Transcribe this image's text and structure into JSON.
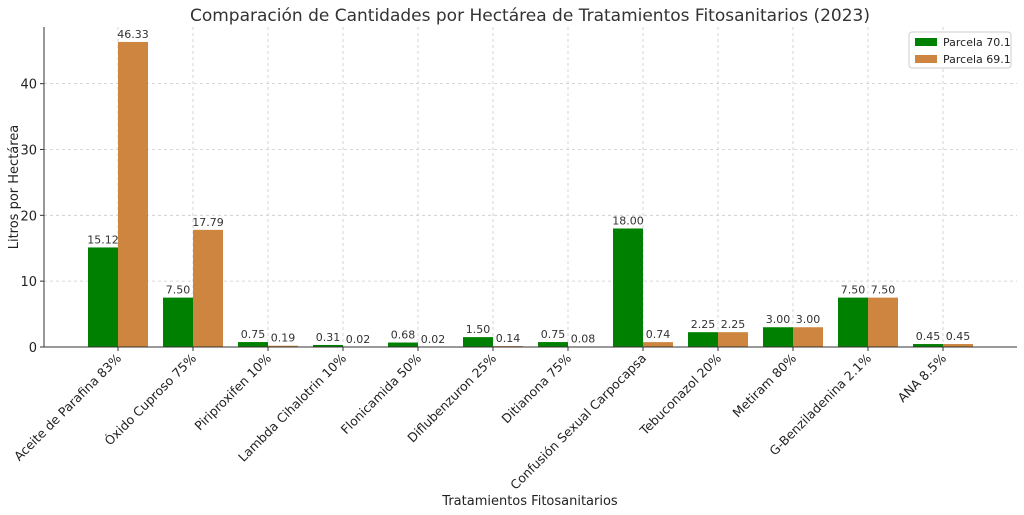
{
  "chart_data": {
    "type": "bar",
    "title": "Comparación de Cantidades por Hectárea de Tratamientos Fitosanitarios (2023)",
    "xlabel": "Tratamientos Fitosanitarios",
    "ylabel": "Litros por Hectárea",
    "ylim": [
      0,
      48.6
    ],
    "yticks": [
      "0",
      "10",
      "20",
      "30",
      "40"
    ],
    "grid": true,
    "legend_position": "top-right",
    "categories": [
      "Aceite de Parafina 83%",
      "Óxido Cuproso 75%",
      "Piriproxifen 10%",
      "Lambda Cihalotrin 10%",
      "Flonicamida 50%",
      "Diflubenzuron 25%",
      "Ditianona 75%",
      "Confusión Sexual Carpocapsa",
      "Tebuconazol 20%",
      "Metiram 80%",
      "G-Benziladenina 2.1%",
      "ANA 8.5%"
    ],
    "series": [
      {
        "name": "Parcela 70.1",
        "color": "#008000",
        "values": [
          15.12,
          7.5,
          0.75,
          0.31,
          0.68,
          1.5,
          0.75,
          18.0,
          2.25,
          3.0,
          7.5,
          0.45
        ],
        "labels": [
          "15.12",
          "7.50",
          "0.75",
          "0.31",
          "0.68",
          "1.50",
          "0.75",
          "18.00",
          "2.25",
          "3.00",
          "7.50",
          "0.45"
        ]
      },
      {
        "name": "Parcela 69.1",
        "color": "#CD853F",
        "values": [
          46.33,
          17.79,
          0.19,
          0.02,
          0.02,
          0.14,
          0.08,
          0.74,
          2.25,
          3.0,
          7.5,
          0.45
        ],
        "labels": [
          "46.33",
          "17.79",
          "0.19",
          "0.02",
          "0.02",
          "0.14",
          "0.08",
          "0.74",
          "2.25",
          "3.00",
          "7.50",
          "0.45"
        ]
      }
    ]
  }
}
